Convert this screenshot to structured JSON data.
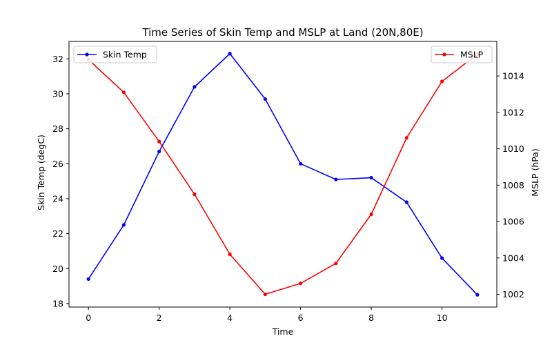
{
  "chart_data": {
    "type": "line",
    "title": "Time Series of Skin Temp and MSLP at Land (20N,80E)",
    "xlabel": "Time",
    "x": [
      0,
      1,
      2,
      3,
      4,
      5,
      6,
      7,
      8,
      9,
      10,
      11
    ],
    "xlim": [
      -0.55,
      11.55
    ],
    "xticks": [
      0,
      2,
      4,
      6,
      8,
      10
    ],
    "grid": false,
    "left_axis": {
      "label": "Skin Temp (degC)",
      "ylim": [
        17.8,
        33.0
      ],
      "ticks": [
        18,
        20,
        22,
        24,
        26,
        28,
        30,
        32
      ]
    },
    "right_axis": {
      "label": "MSLP (hPa)",
      "ylim": [
        1001.3,
        1015.9
      ],
      "ticks": [
        1002,
        1004,
        1006,
        1008,
        1010,
        1012,
        1014
      ]
    },
    "series": [
      {
        "name": "Skin Temp",
        "axis": "left",
        "color": "#0000ff",
        "legend_position": "upper-left",
        "values": [
          19.4,
          22.5,
          26.7,
          30.4,
          32.3,
          29.7,
          26.0,
          25.1,
          25.2,
          23.8,
          20.6,
          18.5
        ]
      },
      {
        "name": "MSLP",
        "axis": "right",
        "color": "#ff0000",
        "legend_position": "upper-right",
        "values": [
          1014.9,
          1013.1,
          1010.4,
          1007.5,
          1004.2,
          1002.0,
          1002.6,
          1003.7,
          1006.4,
          1010.6,
          1013.7,
          1015.2
        ]
      }
    ]
  }
}
